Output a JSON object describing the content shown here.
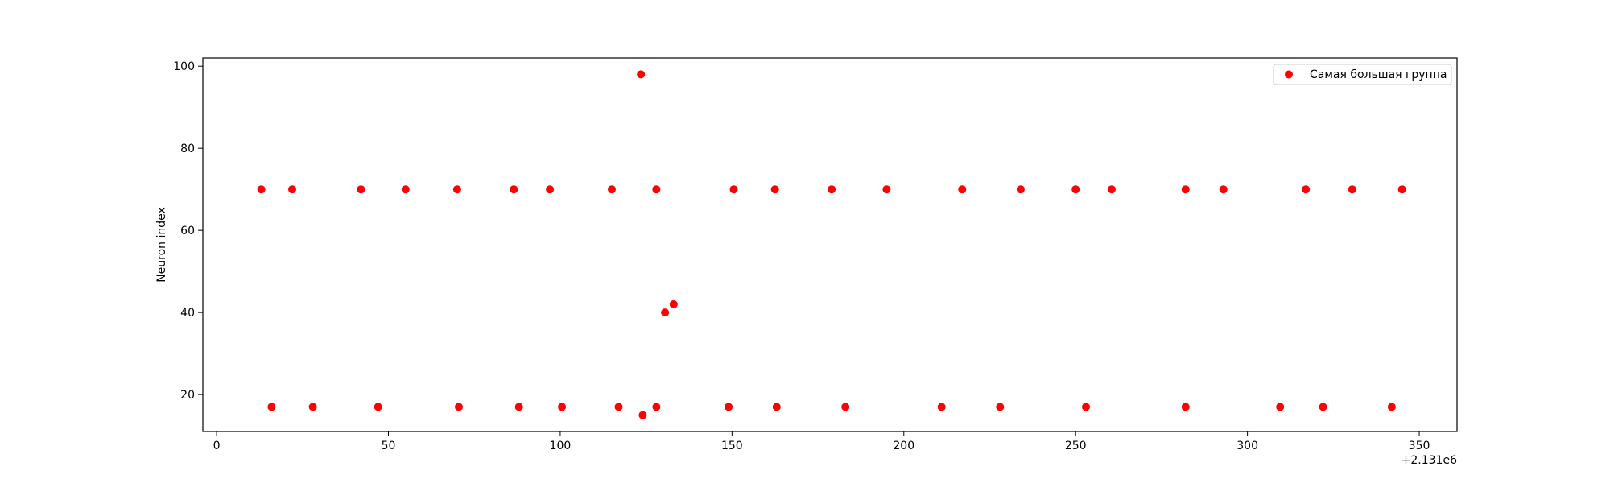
{
  "chart_data": {
    "type": "scatter",
    "title": "",
    "xlabel": "",
    "ylabel": "Neuron index",
    "x_offset_label": "+2.131e6",
    "xlim": [
      -4,
      361
    ],
    "ylim": [
      11,
      102
    ],
    "xticks": [
      0,
      50,
      100,
      150,
      200,
      250,
      300,
      350
    ],
    "yticks": [
      20,
      40,
      60,
      80,
      100
    ],
    "grid": false,
    "legend_position": "top-right",
    "series": [
      {
        "name": "Самая большая группа",
        "color": "#ff0000",
        "points": [
          {
            "x": 13,
            "y": 70
          },
          {
            "x": 16,
            "y": 17
          },
          {
            "x": 22,
            "y": 70
          },
          {
            "x": 28,
            "y": 17
          },
          {
            "x": 42,
            "y": 70
          },
          {
            "x": 47,
            "y": 17
          },
          {
            "x": 55,
            "y": 70
          },
          {
            "x": 70,
            "y": 70
          },
          {
            "x": 70.5,
            "y": 17
          },
          {
            "x": 86.5,
            "y": 70
          },
          {
            "x": 88,
            "y": 17
          },
          {
            "x": 97,
            "y": 70
          },
          {
            "x": 100.5,
            "y": 17
          },
          {
            "x": 115,
            "y": 70
          },
          {
            "x": 117,
            "y": 17
          },
          {
            "x": 123.5,
            "y": 98
          },
          {
            "x": 124,
            "y": 15
          },
          {
            "x": 128,
            "y": 70
          },
          {
            "x": 128,
            "y": 17
          },
          {
            "x": 130.5,
            "y": 40
          },
          {
            "x": 133,
            "y": 42
          },
          {
            "x": 149,
            "y": 17
          },
          {
            "x": 150.5,
            "y": 70
          },
          {
            "x": 162.5,
            "y": 70
          },
          {
            "x": 163,
            "y": 17
          },
          {
            "x": 179,
            "y": 70
          },
          {
            "x": 183,
            "y": 17
          },
          {
            "x": 195,
            "y": 70
          },
          {
            "x": 211,
            "y": 17
          },
          {
            "x": 217,
            "y": 70
          },
          {
            "x": 228,
            "y": 17
          },
          {
            "x": 234,
            "y": 70
          },
          {
            "x": 250,
            "y": 70
          },
          {
            "x": 253,
            "y": 17
          },
          {
            "x": 260.5,
            "y": 70
          },
          {
            "x": 282,
            "y": 70
          },
          {
            "x": 282,
            "y": 17
          },
          {
            "x": 293,
            "y": 70
          },
          {
            "x": 309.5,
            "y": 17
          },
          {
            "x": 317,
            "y": 70
          },
          {
            "x": 322,
            "y": 17
          },
          {
            "x": 330.5,
            "y": 70
          },
          {
            "x": 342,
            "y": 17
          },
          {
            "x": 345,
            "y": 70
          }
        ]
      }
    ]
  }
}
